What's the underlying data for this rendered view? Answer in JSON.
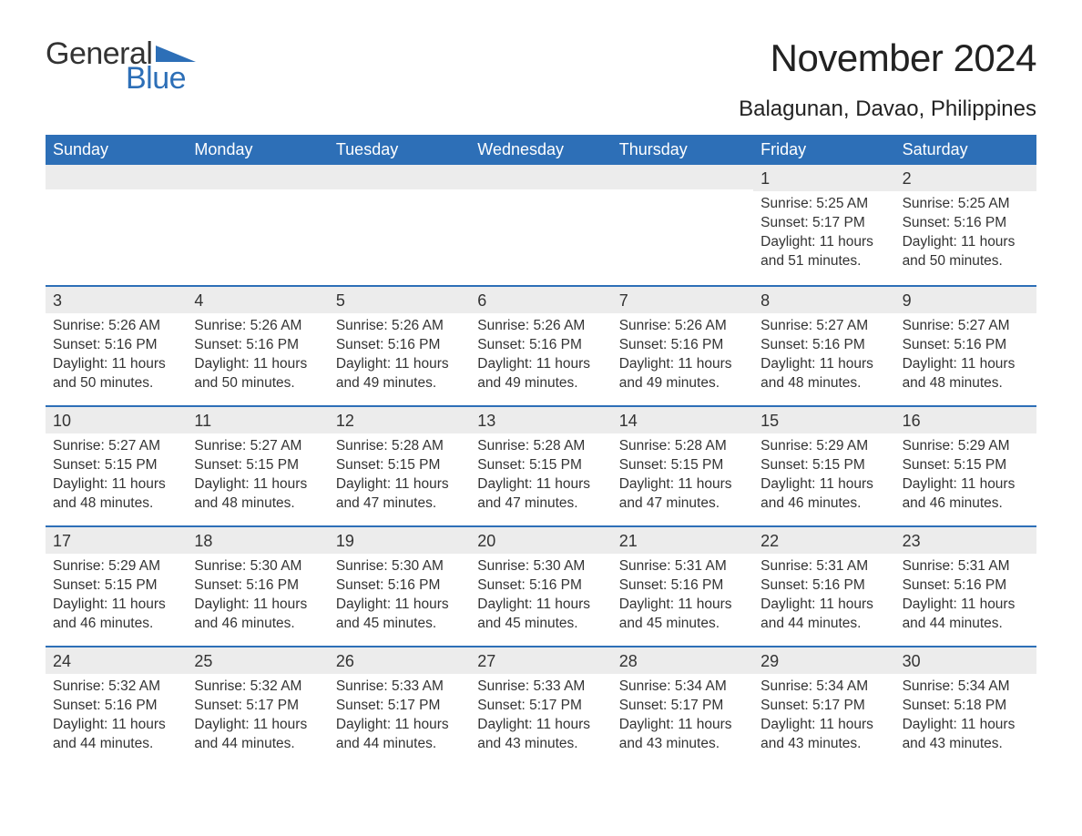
{
  "logo": {
    "word1": "General",
    "word2": "Blue",
    "tri_color": "#2d6fb7"
  },
  "title": "November 2024",
  "location": "Balagunan, Davao, Philippines",
  "colors": {
    "header_bg": "#2d6fb7",
    "header_text": "#ffffff",
    "row_border": "#2d6fb7",
    "daynum_bg": "#ececec",
    "body_text": "#333333",
    "page_bg": "#ffffff"
  },
  "weekdays": [
    "Sunday",
    "Monday",
    "Tuesday",
    "Wednesday",
    "Thursday",
    "Friday",
    "Saturday"
  ],
  "weeks": [
    [
      null,
      null,
      null,
      null,
      null,
      {
        "n": "1",
        "sr": "5:25 AM",
        "ss": "5:17 PM",
        "dl": "11 hours and 51 minutes."
      },
      {
        "n": "2",
        "sr": "5:25 AM",
        "ss": "5:16 PM",
        "dl": "11 hours and 50 minutes."
      }
    ],
    [
      {
        "n": "3",
        "sr": "5:26 AM",
        "ss": "5:16 PM",
        "dl": "11 hours and 50 minutes."
      },
      {
        "n": "4",
        "sr": "5:26 AM",
        "ss": "5:16 PM",
        "dl": "11 hours and 50 minutes."
      },
      {
        "n": "5",
        "sr": "5:26 AM",
        "ss": "5:16 PM",
        "dl": "11 hours and 49 minutes."
      },
      {
        "n": "6",
        "sr": "5:26 AM",
        "ss": "5:16 PM",
        "dl": "11 hours and 49 minutes."
      },
      {
        "n": "7",
        "sr": "5:26 AM",
        "ss": "5:16 PM",
        "dl": "11 hours and 49 minutes."
      },
      {
        "n": "8",
        "sr": "5:27 AM",
        "ss": "5:16 PM",
        "dl": "11 hours and 48 minutes."
      },
      {
        "n": "9",
        "sr": "5:27 AM",
        "ss": "5:16 PM",
        "dl": "11 hours and 48 minutes."
      }
    ],
    [
      {
        "n": "10",
        "sr": "5:27 AM",
        "ss": "5:15 PM",
        "dl": "11 hours and 48 minutes."
      },
      {
        "n": "11",
        "sr": "5:27 AM",
        "ss": "5:15 PM",
        "dl": "11 hours and 48 minutes."
      },
      {
        "n": "12",
        "sr": "5:28 AM",
        "ss": "5:15 PM",
        "dl": "11 hours and 47 minutes."
      },
      {
        "n": "13",
        "sr": "5:28 AM",
        "ss": "5:15 PM",
        "dl": "11 hours and 47 minutes."
      },
      {
        "n": "14",
        "sr": "5:28 AM",
        "ss": "5:15 PM",
        "dl": "11 hours and 47 minutes."
      },
      {
        "n": "15",
        "sr": "5:29 AM",
        "ss": "5:15 PM",
        "dl": "11 hours and 46 minutes."
      },
      {
        "n": "16",
        "sr": "5:29 AM",
        "ss": "5:15 PM",
        "dl": "11 hours and 46 minutes."
      }
    ],
    [
      {
        "n": "17",
        "sr": "5:29 AM",
        "ss": "5:15 PM",
        "dl": "11 hours and 46 minutes."
      },
      {
        "n": "18",
        "sr": "5:30 AM",
        "ss": "5:16 PM",
        "dl": "11 hours and 46 minutes."
      },
      {
        "n": "19",
        "sr": "5:30 AM",
        "ss": "5:16 PM",
        "dl": "11 hours and 45 minutes."
      },
      {
        "n": "20",
        "sr": "5:30 AM",
        "ss": "5:16 PM",
        "dl": "11 hours and 45 minutes."
      },
      {
        "n": "21",
        "sr": "5:31 AM",
        "ss": "5:16 PM",
        "dl": "11 hours and 45 minutes."
      },
      {
        "n": "22",
        "sr": "5:31 AM",
        "ss": "5:16 PM",
        "dl": "11 hours and 44 minutes."
      },
      {
        "n": "23",
        "sr": "5:31 AM",
        "ss": "5:16 PM",
        "dl": "11 hours and 44 minutes."
      }
    ],
    [
      {
        "n": "24",
        "sr": "5:32 AM",
        "ss": "5:16 PM",
        "dl": "11 hours and 44 minutes."
      },
      {
        "n": "25",
        "sr": "5:32 AM",
        "ss": "5:17 PM",
        "dl": "11 hours and 44 minutes."
      },
      {
        "n": "26",
        "sr": "5:33 AM",
        "ss": "5:17 PM",
        "dl": "11 hours and 44 minutes."
      },
      {
        "n": "27",
        "sr": "5:33 AM",
        "ss": "5:17 PM",
        "dl": "11 hours and 43 minutes."
      },
      {
        "n": "28",
        "sr": "5:34 AM",
        "ss": "5:17 PM",
        "dl": "11 hours and 43 minutes."
      },
      {
        "n": "29",
        "sr": "5:34 AM",
        "ss": "5:17 PM",
        "dl": "11 hours and 43 minutes."
      },
      {
        "n": "30",
        "sr": "5:34 AM",
        "ss": "5:18 PM",
        "dl": "11 hours and 43 minutes."
      }
    ]
  ],
  "labels": {
    "sunrise": "Sunrise:",
    "sunset": "Sunset:",
    "daylight": "Daylight:"
  }
}
